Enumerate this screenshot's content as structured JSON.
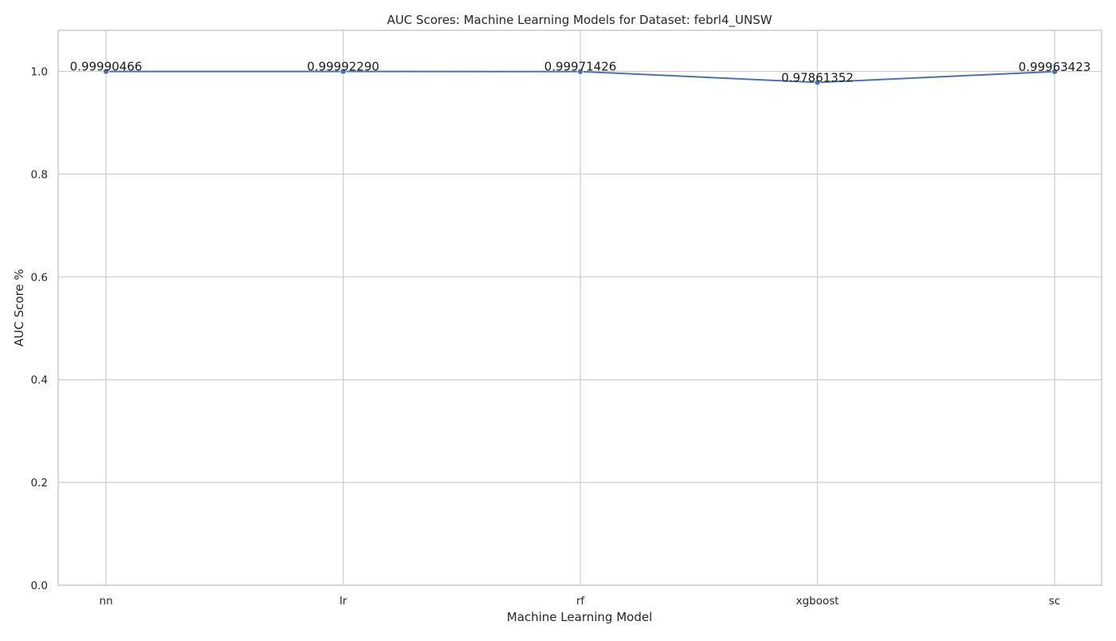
{
  "chart_data": {
    "type": "line",
    "title": "AUC Scores: Machine Learning Models for Dataset: febrl4_UNSW",
    "xlabel": "Machine Learning Model",
    "ylabel": "AUC Score %",
    "categories": [
      "nn",
      "lr",
      "rf",
      "xgboost",
      "sc"
    ],
    "series": [
      {
        "values": [
          0.99990466,
          0.9999229,
          0.99971426,
          0.97861352,
          0.99963423
        ],
        "labels": [
          "0.99990466",
          "0.99992290",
          "0.99971426",
          "0.97861352",
          "0.99963423"
        ]
      }
    ],
    "ylim": [
      0,
      1.08
    ],
    "yticks": [
      0.0,
      0.2,
      0.4,
      0.6,
      0.8,
      1.0
    ],
    "ytick_labels": [
      "0.0",
      "0.2",
      "0.4",
      "0.6",
      "0.8",
      "1.0"
    ],
    "grid": true,
    "colors": {
      "line": "#4c72b0",
      "grid": "#cccccc"
    }
  }
}
